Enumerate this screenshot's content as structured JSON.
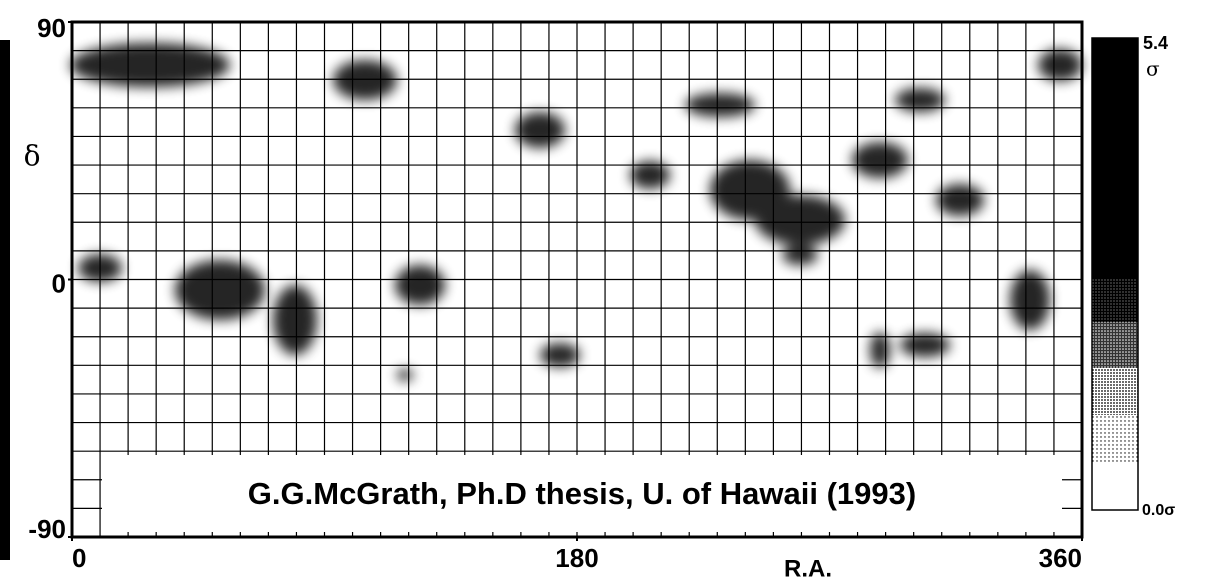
{
  "chart_data": {
    "type": "heatmap",
    "x_label": "R.A.",
    "y_label": "δ",
    "xlim": [
      0,
      360
    ],
    "ylim": [
      -90,
      90
    ],
    "xticks": [
      0,
      180,
      360
    ],
    "yticks": [
      -90,
      0,
      90
    ],
    "grid": true,
    "annotation": "G.G.McGrath, Ph.D thesis, U. of Hawaii (1993)",
    "colorbar": {
      "top_label": "5.4",
      "top_unit": "σ",
      "bottom_label": "0.0σ"
    }
  }
}
